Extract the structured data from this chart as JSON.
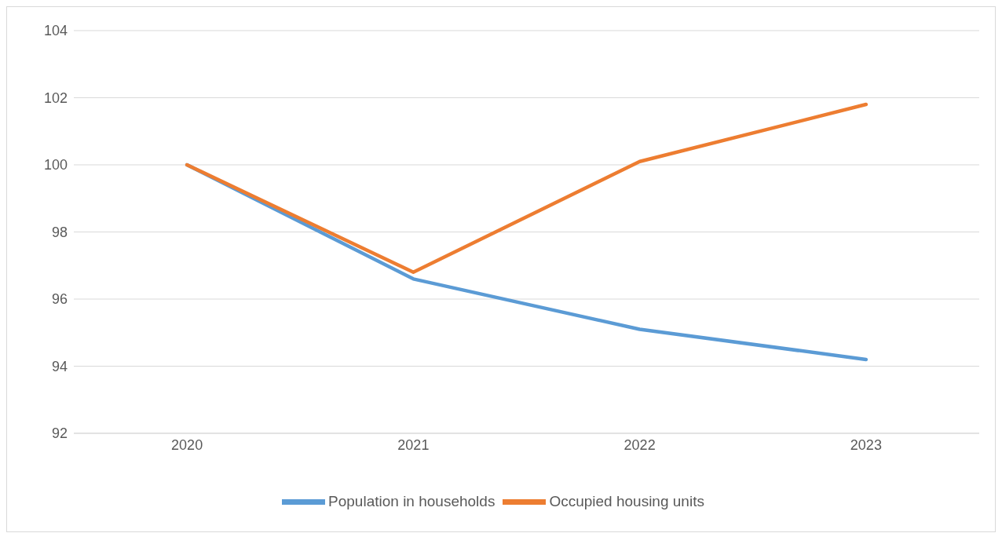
{
  "chart_data": {
    "type": "line",
    "categories": [
      "2020",
      "2021",
      "2022",
      "2023"
    ],
    "series": [
      {
        "name": "Population in households",
        "color": "#5b9bd5",
        "values": [
          100,
          96.6,
          95.1,
          94.2
        ]
      },
      {
        "name": "Occupied housing units",
        "color": "#ed7d31",
        "values": [
          100,
          96.8,
          100.1,
          101.8
        ]
      }
    ],
    "ylim": [
      92,
      104
    ],
    "yticks": [
      92,
      94,
      96,
      98,
      100,
      102,
      104
    ],
    "grid": "y",
    "legend": "bottom",
    "marker": "none",
    "line_style": "solid"
  }
}
